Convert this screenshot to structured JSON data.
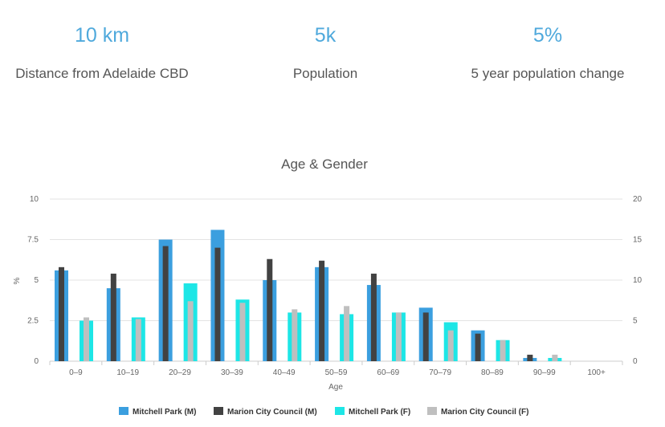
{
  "stats": [
    {
      "value": "10 km",
      "label": "Distance from Adelaide CBD"
    },
    {
      "value": "5k",
      "label": "Population"
    },
    {
      "value": "5%",
      "label": "5 year population change"
    }
  ],
  "chart_data": {
    "type": "bar",
    "title": "Age & Gender",
    "xlabel": "Age",
    "ylabel": "%",
    "ylim": [
      0,
      10
    ],
    "y2lim": [
      0,
      20
    ],
    "yticks": [
      0,
      2.5,
      5,
      7.5,
      10
    ],
    "y2ticks": [
      0,
      5,
      10,
      15,
      20
    ],
    "ytick_labels": [
      "0",
      "2.5",
      "5",
      "7.5",
      "10"
    ],
    "y2tick_labels": [
      "0",
      "5",
      "10",
      "15",
      "20"
    ],
    "grid": true,
    "legend_position": "bottom",
    "categories": [
      "0–9",
      "10–19",
      "20–29",
      "30–39",
      "40–49",
      "50–59",
      "60–69",
      "70–79",
      "80–89",
      "90–99",
      "100+"
    ],
    "series": [
      {
        "name": "Mitchell Park (M)",
        "color": "#3b9fdf",
        "values": [
          5.6,
          4.5,
          7.5,
          8.1,
          5.0,
          5.8,
          4.7,
          3.3,
          1.9,
          0.2,
          0
        ]
      },
      {
        "name": "Marion City Council (M)",
        "color": "#424242",
        "values": [
          5.8,
          5.4,
          7.1,
          7.0,
          6.3,
          6.2,
          5.4,
          3.0,
          1.7,
          0.4,
          0
        ]
      },
      {
        "name": "Mitchell Park (F)",
        "color": "#1de6e6",
        "values": [
          2.5,
          2.7,
          4.8,
          3.8,
          3.0,
          2.9,
          3.0,
          2.4,
          1.3,
          0.2,
          0
        ]
      },
      {
        "name": "Marion City Council (F)",
        "color": "#bfbfbf",
        "values": [
          2.7,
          2.6,
          3.7,
          3.6,
          3.2,
          3.4,
          3.0,
          1.9,
          1.3,
          0.4,
          0
        ]
      }
    ]
  }
}
